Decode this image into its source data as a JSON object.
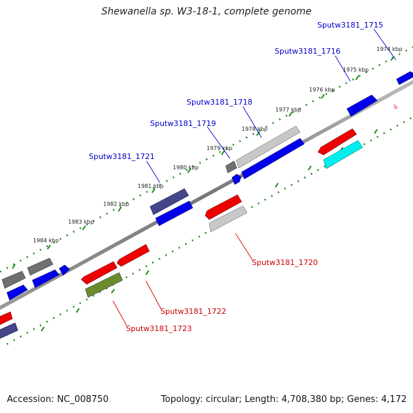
{
  "title": "Shewanella sp. W3-18-1, complete genome",
  "footer": {
    "accession": "Accession: NC_008750",
    "summary": "Topology: circular; Length: 4,708,380 bp; Genes: 4,172"
  },
  "colors": {
    "backbone": "#888888",
    "dotted_ring": "#1a8c1a",
    "label_upper": "#0000cc",
    "label_lower": "#cc0000",
    "gene_blue": "#0000ee",
    "gene_red": "#ee0000",
    "gene_gray_dark": "#707070",
    "gene_gray_light": "#c8c8c8",
    "gene_navy": "#45458a",
    "gene_olive": "#6b8c2a",
    "gene_cyan": "#00eeee"
  },
  "kbp_ticks": [
    "1974 kbp",
    "1975 kbp",
    "1976 kbp",
    "1977 kbp",
    "1978 kbp",
    "1979 kbp",
    "1980 kbp",
    "1981 kbp",
    "1982 kbp",
    "1983 kbp",
    "1984 kbp"
  ],
  "gene_labels_upper": [
    "Sputw3181_1715",
    "Sputw3181_1716",
    "Sputw3181_1718",
    "Sputw3181_1719",
    "Sputw3181_1721"
  ],
  "gene_labels_lower": [
    "Sputw3181_1720",
    "Sputw3181_1722",
    "Sputw3181_1723"
  ]
}
